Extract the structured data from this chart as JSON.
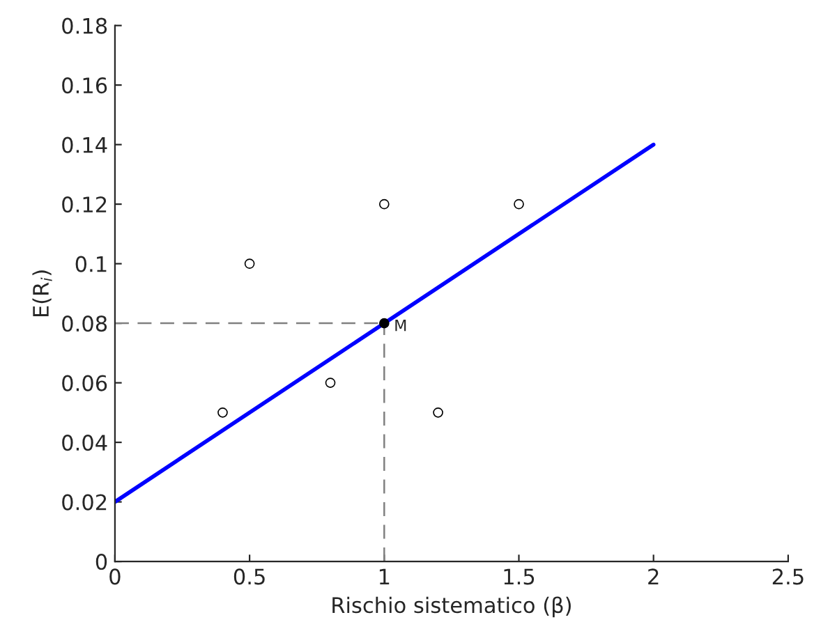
{
  "chart_data": {
    "type": "scatter",
    "xlabel": "Rischio sistematico (β)",
    "ylabel": "E(R$_{i}$)",
    "xlim": [
      0,
      2.5
    ],
    "xticks": [
      0,
      0.5,
      1,
      1.5,
      2,
      2.5
    ],
    "ylim": [
      0,
      0.18
    ],
    "yticks": [
      0,
      0.02,
      0.04,
      0.06,
      0.08,
      0.1,
      0.12,
      0.14,
      0.16,
      0.18
    ],
    "grid": false,
    "legend": false,
    "series": [
      {
        "type": "line",
        "color": "#0000ff",
        "line_style": "solid",
        "marker": "none",
        "x": [
          0,
          2
        ],
        "values": [
          0.02,
          0.14
        ]
      },
      {
        "type": "line",
        "color": "#808080",
        "line_style": "dashed",
        "marker": "none",
        "x": [
          0,
          1
        ],
        "values": [
          0.08,
          0.08
        ]
      },
      {
        "type": "line",
        "color": "#808080",
        "line_style": "dashed",
        "marker": "none",
        "x": [
          1,
          1
        ],
        "values": [
          0,
          0.08
        ]
      },
      {
        "color": "#000000",
        "marker": "circle",
        "x": [
          0.4,
          0.5,
          0.8,
          1.0,
          1.2,
          1.5
        ],
        "values": [
          0.05,
          0.1,
          0.06,
          0.12,
          0.05,
          0.12
        ]
      },
      {
        "color": "#000000",
        "marker": "circle",
        "x": [
          1
        ],
        "values": [
          0.08
        ]
      }
    ],
    "annotations": [
      {
        "text": "M",
        "x": 1,
        "y": 0.08
      }
    ]
  }
}
